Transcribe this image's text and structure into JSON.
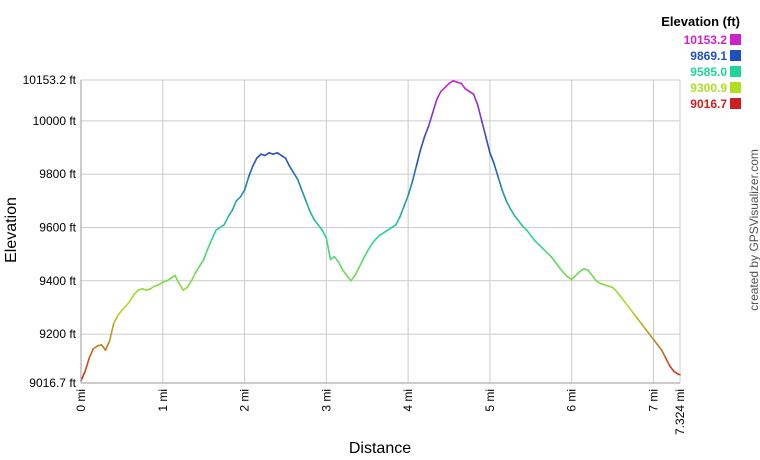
{
  "credit": "created by GPSVisualizer.com",
  "chart_data": {
    "type": "line",
    "xlabel": "Distance",
    "ylabel": "Elevation",
    "xlim": [
      0,
      7.324
    ],
    "ylim": [
      9016.7,
      10153.2
    ],
    "x_ticks": [
      {
        "value": 0,
        "label": "0 mi"
      },
      {
        "value": 1,
        "label": "1 mi"
      },
      {
        "value": 2,
        "label": "2 mi"
      },
      {
        "value": 3,
        "label": "3 mi"
      },
      {
        "value": 4,
        "label": "4 mi"
      },
      {
        "value": 5,
        "label": "5 mi"
      },
      {
        "value": 6,
        "label": "6 mi"
      },
      {
        "value": 7,
        "label": "7 mi"
      },
      {
        "value": 7.324,
        "label": "7.324 mi"
      }
    ],
    "y_ticks": [
      {
        "value": 9016.7,
        "label": "9016.7 ft"
      },
      {
        "value": 9200,
        "label": "9200 ft"
      },
      {
        "value": 9400,
        "label": "9400 ft"
      },
      {
        "value": 9600,
        "label": "9600 ft"
      },
      {
        "value": 9800,
        "label": "9800 ft"
      },
      {
        "value": 10000,
        "label": "10000 ft"
      },
      {
        "value": 10153.2,
        "label": "10153.2 ft"
      }
    ],
    "grid": true,
    "legend": {
      "title": "Elevation (ft)",
      "placement": "top-right",
      "entries": [
        {
          "label": "10153.2",
          "color": "#cc22cc"
        },
        {
          "label": "9869.1",
          "color": "#1f4fbf"
        },
        {
          "label": "9585.0",
          "color": "#22d39a"
        },
        {
          "label": "9300.9",
          "color": "#aee01f"
        },
        {
          "label": "9016.7",
          "color": "#cc1f1f"
        }
      ]
    },
    "color_stops": [
      {
        "value": 9016.7,
        "color": "#cc1f1f"
      },
      {
        "value": 9300.9,
        "color": "#aee01f"
      },
      {
        "value": 9585.0,
        "color": "#22d39a"
      },
      {
        "value": 9869.1,
        "color": "#1f4fbf"
      },
      {
        "value": 10153.2,
        "color": "#cc22cc"
      }
    ],
    "series": [
      {
        "x": [
          0,
          0.05,
          0.1,
          0.15,
          0.2,
          0.25,
          0.3,
          0.35,
          0.4,
          0.45,
          0.5,
          0.55,
          0.6,
          0.65,
          0.7,
          0.75,
          0.8,
          0.85,
          0.9,
          0.95,
          1.0,
          1.05,
          1.1,
          1.15,
          1.2,
          1.25,
          1.3,
          1.35,
          1.4,
          1.45,
          1.5,
          1.55,
          1.6,
          1.65,
          1.7,
          1.75,
          1.8,
          1.85,
          1.9,
          1.95,
          2.0,
          2.05,
          2.1,
          2.15,
          2.2,
          2.25,
          2.3,
          2.35,
          2.4,
          2.45,
          2.5,
          2.55,
          2.6,
          2.65,
          2.7,
          2.75,
          2.8,
          2.85,
          2.9,
          2.95,
          3.0,
          3.05,
          3.1,
          3.15,
          3.2,
          3.25,
          3.3,
          3.35,
          3.4,
          3.45,
          3.5,
          3.55,
          3.6,
          3.65,
          3.7,
          3.75,
          3.8,
          3.85,
          3.9,
          3.95,
          4.0,
          4.05,
          4.1,
          4.15,
          4.2,
          4.25,
          4.3,
          4.35,
          4.4,
          4.45,
          4.5,
          4.55,
          4.6,
          4.65,
          4.7,
          4.75,
          4.8,
          4.85,
          4.9,
          4.95,
          5.0,
          5.05,
          5.1,
          5.15,
          5.2,
          5.25,
          5.3,
          5.35,
          5.4,
          5.45,
          5.5,
          5.55,
          5.6,
          5.65,
          5.7,
          5.75,
          5.8,
          5.85,
          5.9,
          5.95,
          6.0,
          6.05,
          6.1,
          6.15,
          6.2,
          6.25,
          6.3,
          6.35,
          6.4,
          6.45,
          6.5,
          6.55,
          6.6,
          6.65,
          6.7,
          6.75,
          6.8,
          6.85,
          6.9,
          6.95,
          7.0,
          7.05,
          7.1,
          7.15,
          7.2,
          7.25,
          7.3,
          7.324
        ],
        "y": [
          9025,
          9060,
          9110,
          9145,
          9155,
          9160,
          9140,
          9175,
          9240,
          9270,
          9290,
          9305,
          9325,
          9350,
          9365,
          9370,
          9365,
          9370,
          9380,
          9385,
          9395,
          9400,
          9410,
          9420,
          9390,
          9365,
          9375,
          9400,
          9430,
          9455,
          9480,
          9520,
          9555,
          9590,
          9600,
          9610,
          9640,
          9665,
          9700,
          9715,
          9740,
          9790,
          9830,
          9860,
          9875,
          9870,
          9880,
          9875,
          9880,
          9870,
          9860,
          9830,
          9805,
          9780,
          9740,
          9700,
          9660,
          9630,
          9610,
          9590,
          9560,
          9480,
          9490,
          9470,
          9440,
          9420,
          9400,
          9420,
          9450,
          9480,
          9510,
          9535,
          9555,
          9570,
          9580,
          9590,
          9600,
          9610,
          9640,
          9680,
          9720,
          9770,
          9830,
          9890,
          9940,
          9980,
          10030,
          10080,
          10110,
          10125,
          10140,
          10150,
          10145,
          10140,
          10120,
          10110,
          10100,
          10060,
          10000,
          9940,
          9880,
          9840,
          9790,
          9740,
          9700,
          9670,
          9645,
          9625,
          9605,
          9590,
          9570,
          9550,
          9535,
          9520,
          9505,
          9490,
          9470,
          9450,
          9430,
          9415,
          9405,
          9420,
          9435,
          9445,
          9440,
          9420,
          9400,
          9390,
          9385,
          9380,
          9375,
          9360,
          9340,
          9320,
          9300,
          9280,
          9260,
          9240,
          9220,
          9200,
          9180,
          9160,
          9140,
          9110,
          9080,
          9060,
          9050,
          9048
        ]
      }
    ]
  }
}
